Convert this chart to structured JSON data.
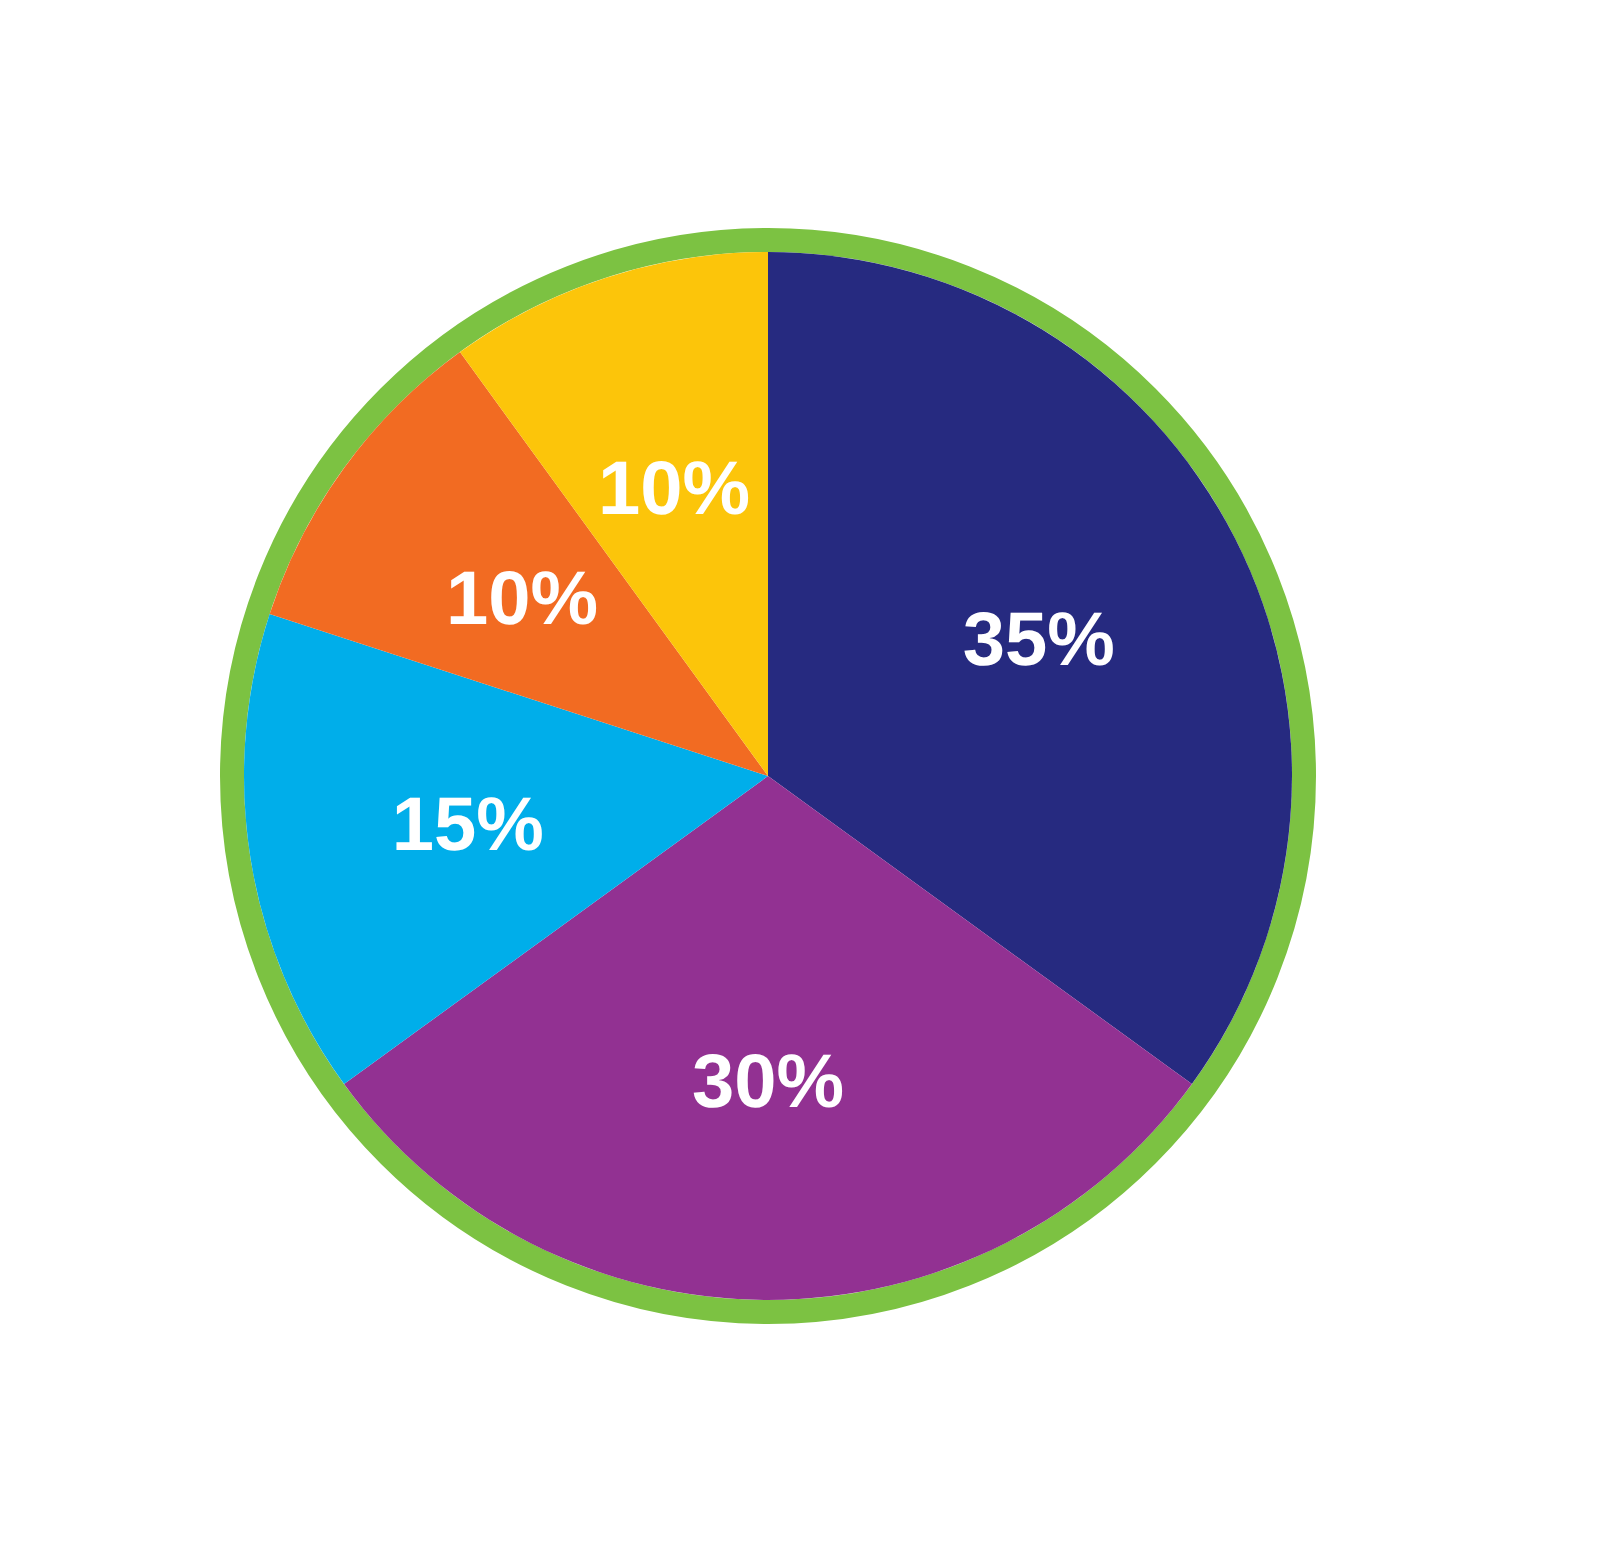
{
  "chart_data": {
    "type": "pie",
    "categories": [
      null,
      null,
      null,
      null,
      null
    ],
    "values": [
      35,
      30,
      15,
      10,
      10
    ],
    "colors": [
      "#262a80",
      "#923192",
      "#00aeea",
      "#f26b22",
      "#fcc50a"
    ],
    "value_labels": [
      "35%",
      "30%",
      "15%",
      "10%",
      "10%"
    ]
  }
}
